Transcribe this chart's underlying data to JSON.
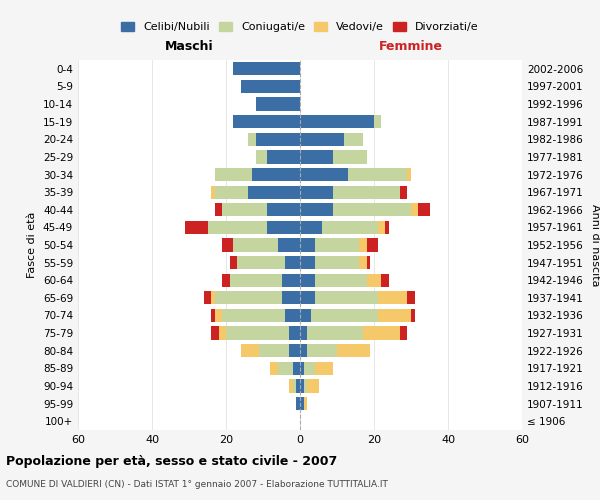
{
  "age_groups": [
    "100+",
    "95-99",
    "90-94",
    "85-89",
    "80-84",
    "75-79",
    "70-74",
    "65-69",
    "60-64",
    "55-59",
    "50-54",
    "45-49",
    "40-44",
    "35-39",
    "30-34",
    "25-29",
    "20-24",
    "15-19",
    "10-14",
    "5-9",
    "0-4"
  ],
  "birth_years": [
    "≤ 1906",
    "1907-1911",
    "1912-1916",
    "1917-1921",
    "1922-1926",
    "1927-1931",
    "1932-1936",
    "1937-1941",
    "1942-1946",
    "1947-1951",
    "1952-1956",
    "1957-1961",
    "1962-1966",
    "1967-1971",
    "1972-1976",
    "1977-1981",
    "1982-1986",
    "1987-1991",
    "1992-1996",
    "1997-2001",
    "2002-2006"
  ],
  "maschi": {
    "celibi": [
      0,
      1,
      1,
      2,
      3,
      3,
      4,
      5,
      5,
      4,
      6,
      9,
      9,
      14,
      13,
      9,
      12,
      18,
      12,
      16,
      18
    ],
    "coniugati": [
      0,
      0,
      1,
      4,
      8,
      17,
      17,
      18,
      14,
      13,
      12,
      16,
      12,
      9,
      10,
      3,
      2,
      0,
      0,
      0,
      0
    ],
    "vedovi": [
      0,
      0,
      1,
      2,
      5,
      2,
      2,
      1,
      0,
      0,
      0,
      0,
      0,
      1,
      0,
      0,
      0,
      0,
      0,
      0,
      0
    ],
    "divorziati": [
      0,
      0,
      0,
      0,
      0,
      2,
      1,
      2,
      2,
      2,
      3,
      6,
      2,
      0,
      0,
      0,
      0,
      0,
      0,
      0,
      0
    ]
  },
  "femmine": {
    "nubili": [
      0,
      1,
      1,
      1,
      2,
      2,
      3,
      4,
      4,
      4,
      4,
      6,
      9,
      9,
      13,
      9,
      12,
      20,
      0,
      0,
      0
    ],
    "coniugate": [
      0,
      0,
      1,
      3,
      8,
      15,
      18,
      17,
      14,
      12,
      12,
      15,
      21,
      18,
      16,
      9,
      5,
      2,
      0,
      0,
      0
    ],
    "vedove": [
      0,
      1,
      3,
      5,
      9,
      10,
      9,
      8,
      4,
      2,
      2,
      2,
      2,
      0,
      1,
      0,
      0,
      0,
      0,
      0,
      0
    ],
    "divorziate": [
      0,
      0,
      0,
      0,
      0,
      2,
      1,
      2,
      2,
      1,
      3,
      1,
      3,
      2,
      0,
      0,
      0,
      0,
      0,
      0,
      0
    ]
  },
  "colors": {
    "celibi": "#3a6ea5",
    "coniugati": "#c5d5a0",
    "vedovi": "#f5c96a",
    "divorziati": "#cc2222"
  },
  "xlim": 60,
  "title": "Popolazione per età, sesso e stato civile - 2007",
  "subtitle": "COMUNE DI VALDIERI (CN) - Dati ISTAT 1° gennaio 2007 - Elaborazione TUTTITALIA.IT",
  "xlabel_left": "Maschi",
  "xlabel_right": "Femmine",
  "ylabel_left": "Fasce di età",
  "ylabel_right": "Anni di nascita",
  "bg_color": "#f5f5f5",
  "plot_bg": "#ffffff"
}
